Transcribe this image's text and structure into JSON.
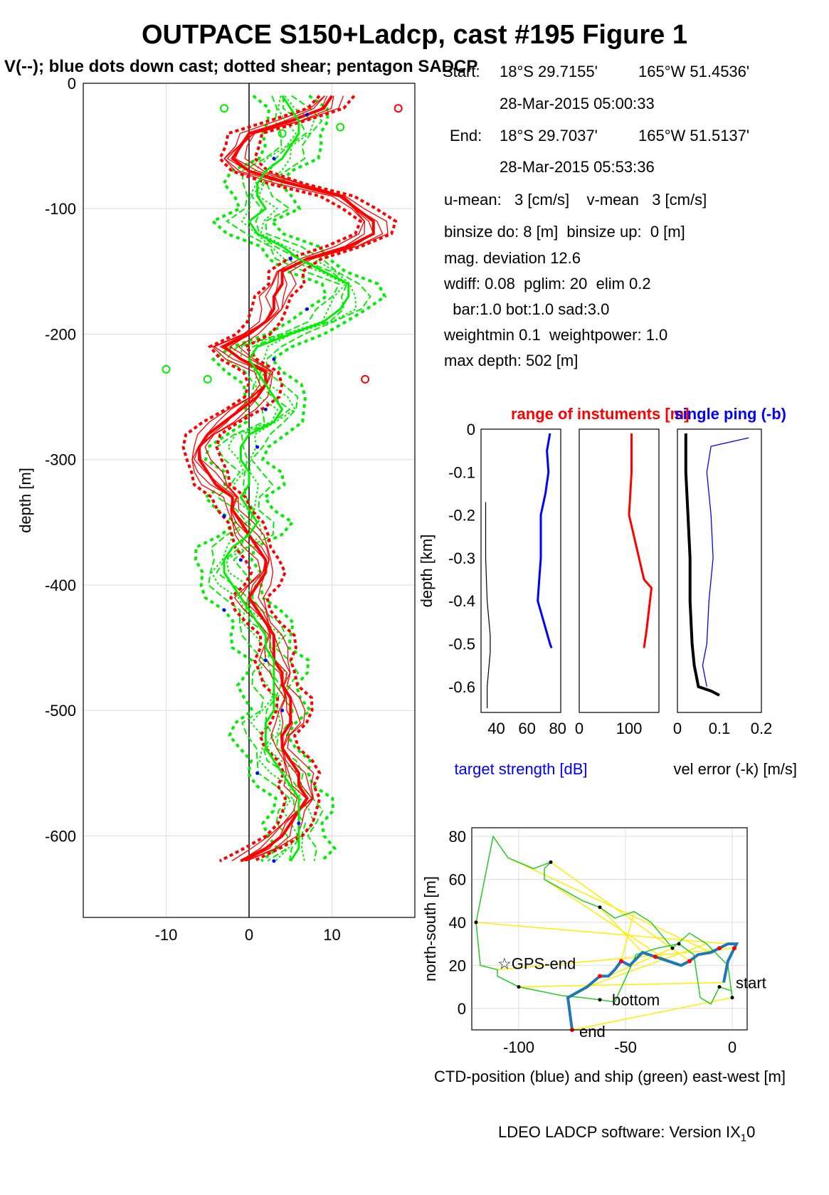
{
  "figure": {
    "title": "OUTPACE S150+Ladcp, cast #195  Figure 1",
    "subtitle": "V(--); blue dots down cast; dotted shear; pentagon SADCP",
    "footer_main": "LDEO LADCP software: Version IX",
    "footer_sub": "1",
    "footer_tail": "0"
  },
  "info": {
    "start_label": "Start:",
    "start_lat": "18°S 29.7155'",
    "start_lon": "165°W 51.4536'",
    "start_time": "28-Mar-2015 05:00:33",
    "end_label": "End:",
    "end_lat": "18°S 29.7037'",
    "end_lon": "165°W 51.5137'",
    "end_time": "28-Mar-2015 05:53:36",
    "means": "u-mean:   3 [cm/s]    v-mean   3 [cm/s]",
    "binsize": "binsize do: 8 [m]  binsize up:  0 [m]",
    "magdev": "mag. deviation 12.6",
    "wdiff": "wdiff: 0.08  pglim: 20  elim 0.2",
    "bar": "  bar:1.0 bot:1.0 sad:3.0",
    "weight": "weightmin 0.1  weightpower: 1.0",
    "maxdepth": "max depth: 502 [m]"
  },
  "colors": {
    "u": "#ff0000",
    "v": "#00ee00",
    "blue": "#0000ff",
    "ctd": "#1f77b4",
    "ship": "#22cc22",
    "link": "#ffee00",
    "grid": "#dddddd"
  },
  "chart_data": [
    {
      "type": "line",
      "id": "velocity-profile",
      "ylabel": "depth [m]",
      "xlabel": "",
      "xlim": [
        -20,
        20
      ],
      "ylim": [
        -665,
        0
      ],
      "xticks": [
        -10,
        0,
        10
      ],
      "yticks": [
        0,
        -100,
        -200,
        -300,
        -400,
        -500,
        -600
      ],
      "grid": true,
      "series": [
        {
          "role": "u-red",
          "color": "red",
          "depth": [
            -10,
            -20,
            -30,
            -40,
            -50,
            -60,
            -70,
            -80,
            -90,
            -100,
            -110,
            -120,
            -130,
            -140,
            -150,
            -160,
            -170,
            -180,
            -190,
            -200,
            -210,
            -220,
            -230,
            -240,
            -250,
            -260,
            -270,
            -280,
            -290,
            -300,
            -310,
            -320,
            -330,
            -340,
            -350,
            -360,
            -370,
            -380,
            -390,
            -400,
            -410,
            -420,
            -430,
            -440,
            -450,
            -460,
            -470,
            -480,
            -490,
            -500,
            -510,
            -520,
            -530,
            -540,
            -550,
            -560,
            -570,
            -580,
            -590,
            -600,
            -610,
            -620
          ],
          "value": [
            10,
            9,
            5,
            0,
            -1,
            -2,
            0,
            5,
            11,
            13,
            15,
            15,
            12,
            7,
            4,
            4,
            3,
            3,
            2,
            0,
            -3,
            -1,
            2,
            2,
            1,
            -1,
            -3,
            -5,
            -6,
            -6,
            -5,
            -4,
            -2,
            -2,
            -1,
            0,
            1,
            2,
            2,
            1,
            0,
            1,
            2,
            3,
            3,
            3,
            4,
            4,
            5,
            5,
            5,
            4,
            4,
            5,
            6,
            6,
            7,
            6,
            5,
            4,
            2,
            -1
          ]
        },
        {
          "role": "v-green",
          "color": "green",
          "depth": [
            -10,
            -20,
            -30,
            -40,
            -50,
            -60,
            -70,
            -80,
            -90,
            -100,
            -110,
            -120,
            -130,
            -140,
            -150,
            -160,
            -170,
            -180,
            -190,
            -200,
            -210,
            -220,
            -230,
            -240,
            -250,
            -260,
            -270,
            -280,
            -290,
            -300,
            -310,
            -320,
            -330,
            -340,
            -350,
            -360,
            -370,
            -380,
            -390,
            -400,
            -410,
            -420,
            -430,
            -440,
            -450,
            -460,
            -470,
            -480,
            -490,
            -500,
            -510,
            -520,
            -530,
            -540,
            -550,
            -560,
            -570,
            -580,
            -590,
            -600,
            -610,
            -620
          ],
          "value": [
            4,
            5,
            6,
            6,
            5,
            4,
            2,
            1,
            1,
            2,
            0,
            1,
            4,
            6,
            9,
            12,
            12,
            11,
            9,
            5,
            1,
            0,
            1,
            2,
            3,
            4,
            3,
            0,
            -1,
            -1,
            0,
            0,
            -1,
            0,
            1,
            0,
            -2,
            -3,
            -3,
            -2,
            -1,
            0,
            1,
            2,
            2,
            3,
            3,
            3,
            3,
            3,
            2,
            2,
            2,
            3,
            4,
            5,
            6,
            6,
            6,
            6,
            6,
            5
          ]
        }
      ],
      "blue_dots_depth": [
        -25,
        -60,
        -140,
        -180,
        -220,
        -260,
        -290,
        -345,
        -380,
        -420,
        -460,
        -500,
        -550,
        -590,
        -620
      ]
    },
    {
      "type": "line",
      "id": "target-strength",
      "title": "",
      "xlabel": "target strength [dB]",
      "ylabel": "depth [km]",
      "xlim": [
        30,
        82
      ],
      "ylim": [
        -0.66,
        0
      ],
      "xticks": [
        40,
        60,
        80
      ],
      "yticks": [
        0,
        -0.1,
        -0.2,
        -0.3,
        -0.4,
        -0.5,
        -0.6
      ],
      "series": [
        {
          "role": "target-blue",
          "depth": [
            -0.01,
            -0.05,
            -0.1,
            -0.15,
            -0.2,
            -0.25,
            -0.3,
            -0.35,
            -0.4,
            -0.45,
            -0.5,
            -0.51
          ],
          "value": [
            75,
            73,
            74,
            72,
            69,
            69,
            69,
            68,
            67,
            71,
            75,
            76
          ]
        },
        {
          "role": "target-black",
          "depth": [
            -0.17,
            -0.3,
            -0.4,
            -0.48,
            -0.52,
            -0.6,
            -0.65
          ],
          "value": [
            33,
            33,
            34,
            36,
            36,
            34,
            34
          ]
        }
      ]
    },
    {
      "type": "line",
      "id": "range",
      "title": "range of instuments [m]",
      "xlim": [
        0,
        160
      ],
      "ylim": [
        -0.66,
        0
      ],
      "xticks": [
        0,
        100
      ],
      "series": [
        {
          "role": "range-red",
          "depth": [
            -0.01,
            -0.1,
            -0.2,
            -0.25,
            -0.3,
            -0.35,
            -0.37,
            -0.42,
            -0.47,
            -0.51
          ],
          "value": [
            105,
            105,
            100,
            110,
            120,
            130,
            145,
            140,
            135,
            130
          ]
        }
      ]
    },
    {
      "type": "line",
      "id": "vel-error",
      "title": "single ping (-b)",
      "xlabel": "vel error (-k) [m/s]",
      "xlim": [
        0,
        0.2
      ],
      "ylim": [
        -0.66,
        0
      ],
      "xticks": [
        0,
        0.1,
        0.2
      ],
      "series": [
        {
          "role": "error-black",
          "depth": [
            -0.01,
            -0.1,
            -0.2,
            -0.3,
            -0.4,
            -0.5,
            -0.55,
            -0.6,
            -0.61,
            -0.62
          ],
          "value": [
            0.02,
            0.02,
            0.025,
            0.03,
            0.03,
            0.035,
            0.04,
            0.05,
            0.08,
            0.1
          ]
        },
        {
          "role": "error-blue",
          "depth": [
            -0.02,
            -0.04,
            -0.1,
            -0.2,
            -0.3,
            -0.35,
            -0.4,
            -0.5,
            -0.55,
            -0.6
          ],
          "value": [
            0.17,
            0.08,
            0.07,
            0.08,
            0.085,
            0.08,
            0.075,
            0.07,
            0.06,
            0.07
          ]
        }
      ]
    },
    {
      "type": "scatter",
      "id": "ctd-position",
      "xlabel": "CTD-position (blue) and ship (green) east-west [m]",
      "ylabel": "north-south [m]",
      "xlim": [
        -122,
        7
      ],
      "ylim": [
        -10,
        84
      ],
      "xticks": [
        -100,
        -50,
        0
      ],
      "yticks": [
        0,
        20,
        40,
        60,
        80
      ],
      "grid": true,
      "ship_x": [
        0,
        -2,
        -12,
        -20,
        -28,
        -38,
        -46,
        -55,
        -62,
        -70,
        -88,
        -88,
        -85,
        -93,
        -105,
        -112,
        -120,
        -118,
        -110,
        -110,
        -100,
        -90,
        -80,
        -70,
        -62,
        -55,
        -45,
        -35,
        -25,
        -18,
        -15,
        -10,
        -6,
        0
      ],
      "ship_y": [
        5,
        20,
        30,
        35,
        28,
        40,
        45,
        42,
        47,
        50,
        60,
        65,
        68,
        65,
        70,
        80,
        40,
        20,
        18,
        15,
        10,
        8,
        6,
        5,
        4,
        3,
        25,
        28,
        30,
        25,
        5,
        2,
        10,
        8
      ],
      "ctd_x": [
        -75,
        -77,
        -68,
        -62,
        -58,
        -55,
        -52,
        -48,
        -42,
        -36,
        -30,
        -24,
        -20,
        -16,
        -10,
        -6,
        -2,
        2,
        1,
        -2,
        -4
      ],
      "ctd_y": [
        -10,
        5,
        10,
        15,
        15,
        18,
        22,
        20,
        26,
        24,
        22,
        20,
        22,
        25,
        26,
        28,
        30,
        30,
        28,
        22,
        12
      ],
      "labels": [
        "GPS-end",
        "start",
        "bottom",
        "end"
      ]
    }
  ]
}
